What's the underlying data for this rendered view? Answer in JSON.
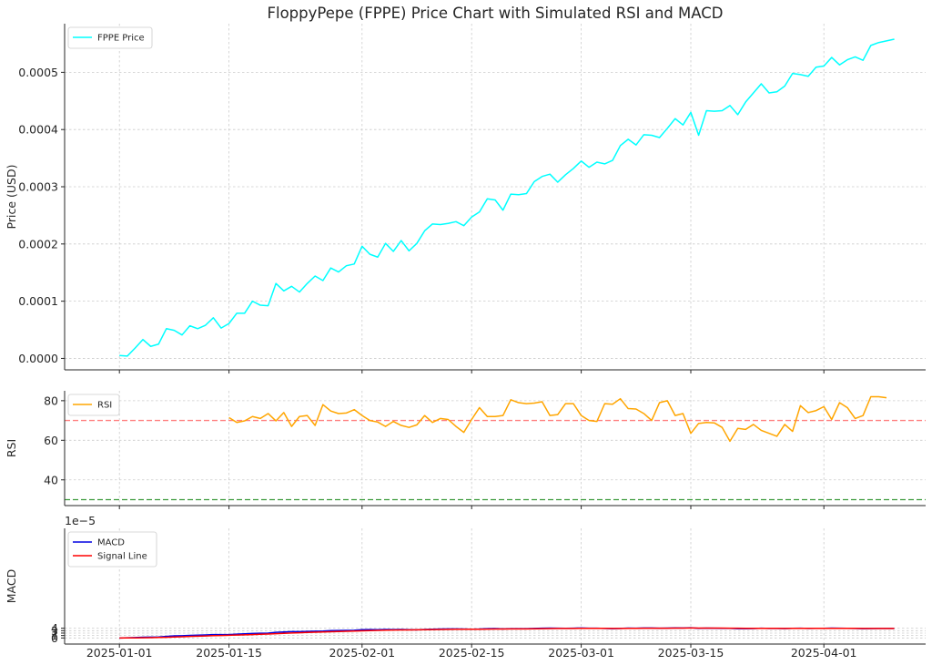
{
  "chart_data": {
    "title": "FloppyPepe (FPPE) Price Chart with Simulated RSI and MACD",
    "x_tick_labels": [
      "2025-01-01",
      "2025-01-15",
      "2025-02-01",
      "2025-02-15",
      "2025-03-01",
      "2025-03-15",
      "2025-04-01"
    ],
    "x_tick_dates": [
      "2025-01-01",
      "2025-01-15",
      "2025-02-01",
      "2025-02-15",
      "2025-03-01",
      "2025-03-15",
      "2025-04-01"
    ],
    "x_start_date": "2025-01-01",
    "x_range": [
      "2024-12-25",
      "2025-04-14"
    ],
    "grid": true,
    "panels": [
      {
        "type": "line",
        "ylabel": "Price (USD)",
        "ylim": [
          -2e-05,
          0.000585
        ],
        "yticks": [
          0.0,
          0.0001,
          0.0002,
          0.0003,
          0.0004,
          0.0005
        ],
        "ytick_labels": [
          "0.0000",
          "0.0001",
          "0.0002",
          "0.0003",
          "0.0004",
          "0.0005"
        ],
        "legend": "upper left",
        "hlines": [],
        "series": [
          {
            "name": "FPPE Price",
            "color": "#00ffff",
            "start_index": 0,
            "values": [
              5e-06,
              4e-06,
              1.8e-05,
              3.3e-05,
              2.1e-05,
              2.5e-05,
              5.2e-05,
              4.9e-05,
              4.1e-05,
              5.7e-05,
              5.2e-05,
              5.8e-05,
              7.1e-05,
              5.3e-05,
              6.1e-05,
              7.9e-05,
              7.9e-05,
              0.0001,
              9.3e-05,
              9.2e-05,
              0.000131,
              0.000118,
              0.000126,
              0.000116,
              0.000131,
              0.000144,
              0.000136,
              0.000158,
              0.000151,
              0.000162,
              0.000165,
              0.000196,
              0.000182,
              0.000177,
              0.000201,
              0.000187,
              0.000206,
              0.000188,
              0.000201,
              0.000223,
              0.000235,
              0.000234,
              0.000236,
              0.000239,
              0.000232,
              0.000247,
              0.000256,
              0.000279,
              0.000277,
              0.000259,
              0.000287,
              0.000286,
              0.000288,
              0.000309,
              0.000318,
              0.000322,
              0.000308,
              0.000321,
              0.000332,
              0.000345,
              0.000334,
              0.000343,
              0.00034,
              0.000346,
              0.000372,
              0.000383,
              0.000373,
              0.000391,
              0.00039,
              0.000386,
              0.000402,
              0.000419,
              0.000408,
              0.00043,
              0.00039,
              0.000433,
              0.000432,
              0.000433,
              0.000442,
              0.000426,
              0.000448,
              0.000464,
              0.00048,
              0.000464,
              0.000466,
              0.000476,
              0.000498,
              0.000496,
              0.000493,
              0.000509,
              0.000511,
              0.000526,
              0.000513,
              0.000522,
              0.000527,
              0.000521,
              0.000547,
              0.000552,
              0.000555,
              0.000558
            ]
          }
        ]
      },
      {
        "type": "line",
        "ylabel": "RSI",
        "ylim": [
          27,
          85
        ],
        "yticks": [
          40,
          60,
          80
        ],
        "ytick_labels": [
          "40",
          "60",
          "80"
        ],
        "legend": "upper left",
        "hlines": [
          {
            "y": 70,
            "color": "#ff7f7f",
            "style": "dashed"
          },
          {
            "y": 30,
            "color": "#3c9a3c",
            "style": "dashed"
          }
        ],
        "series": [
          {
            "name": "RSI",
            "color": "#ffa500",
            "start_index": 14,
            "values": [
              71.5,
              69.0,
              69.8,
              72.0,
              71.0,
              73.5,
              69.8,
              74.0,
              67.0,
              72.0,
              72.5,
              67.5,
              78.0,
              74.8,
              73.5,
              73.8,
              75.5,
              72.5,
              70.0,
              69.2,
              67.0,
              69.5,
              67.5,
              66.5,
              67.8,
              72.5,
              69.0,
              71.0,
              70.5,
              67.0,
              64.0,
              70.5,
              76.5,
              72.0,
              72.0,
              72.5,
              80.5,
              79.0,
              78.5,
              78.8,
              79.5,
              72.5,
              73.0,
              78.5,
              78.5,
              72.5,
              70.0,
              69.5,
              78.5,
              78.2,
              81.0,
              76.0,
              75.8,
              73.5,
              70.0,
              79.0,
              80.0,
              72.5,
              73.5,
              63.5,
              68.5,
              69.0,
              68.8,
              66.5,
              59.5,
              66.0,
              65.5,
              68.0,
              65.0,
              63.5,
              62.0,
              68.0,
              64.5,
              77.5,
              74.0,
              75.0,
              77.0,
              70.5,
              79.0,
              76.5,
              71.0,
              72.5,
              82.0,
              82.0,
              81.5
            ]
          }
        ]
      },
      {
        "type": "line",
        "ylabel": "MACD",
        "ylim": [
          -2.5,
          45
        ],
        "yticks": [
          0,
          1,
          2,
          3,
          4
        ],
        "ytick_labels": [
          "0",
          "1",
          "2",
          "3",
          "4"
        ],
        "offset_text": "1e−5",
        "legend": "upper left",
        "hlines": [],
        "series": [
          {
            "name": "MACD",
            "color": "#0000e0",
            "start_index": 0,
            "values": [
              0.0,
              0.05,
              0.15,
              0.3,
              0.35,
              0.4,
              0.65,
              0.85,
              0.92,
              1.05,
              1.15,
              1.25,
              1.4,
              1.38,
              1.4,
              1.55,
              1.7,
              1.85,
              1.95,
              2.0,
              2.3,
              2.45,
              2.6,
              2.6,
              2.7,
              2.8,
              2.82,
              3.0,
              3.05,
              3.1,
              3.15,
              3.4,
              3.45,
              3.4,
              3.5,
              3.45,
              3.5,
              3.4,
              3.35,
              3.5,
              3.6,
              3.65,
              3.7,
              3.7,
              3.65,
              3.6,
              3.65,
              3.8,
              3.85,
              3.7,
              3.8,
              3.82,
              3.8,
              3.9,
              4.0,
              4.05,
              3.98,
              3.95,
              4.0,
              4.1,
              4.0,
              4.0,
              3.9,
              3.8,
              3.9,
              4.05,
              4.0,
              4.1,
              4.1,
              4.0,
              4.05,
              4.15,
              4.1,
              4.2,
              3.95,
              4.05,
              4.02,
              3.95,
              3.95,
              3.8,
              3.82,
              3.85,
              4.0,
              3.9,
              3.9,
              3.88,
              3.95,
              3.98,
              3.9,
              3.95,
              3.95,
              4.05,
              3.98,
              3.95,
              3.9,
              3.8,
              3.85,
              3.9,
              3.9,
              3.92
            ]
          },
          {
            "name": "Signal Line",
            "color": "#ff0000",
            "start_index": 0,
            "values": [
              0.0,
              0.01,
              0.04,
              0.09,
              0.14,
              0.19,
              0.28,
              0.39,
              0.5,
              0.61,
              0.72,
              0.82,
              0.94,
              1.02,
              1.1,
              1.19,
              1.29,
              1.4,
              1.51,
              1.61,
              1.75,
              1.89,
              2.03,
              2.14,
              2.25,
              2.36,
              2.45,
              2.56,
              2.66,
              2.75,
              2.83,
              2.94,
              3.04,
              3.11,
              3.19,
              3.24,
              3.29,
              3.32,
              3.33,
              3.37,
              3.42,
              3.47,
              3.52,
              3.56,
              3.58,
              3.58,
              3.6,
              3.64,
              3.68,
              3.69,
              3.71,
              3.73,
              3.74,
              3.77,
              3.82,
              3.86,
              3.89,
              3.9,
              3.92,
              3.95,
              3.96,
              3.97,
              3.95,
              3.92,
              3.92,
              3.95,
              3.96,
              3.99,
              4.01,
              4.01,
              4.02,
              4.05,
              4.06,
              4.09,
              4.06,
              4.06,
              4.05,
              4.03,
              4.02,
              3.98,
              3.95,
              3.93,
              3.94,
              3.94,
              3.93,
              3.92,
              3.93,
              3.94,
              3.93,
              3.94,
              3.94,
              3.96,
              3.96,
              3.96,
              3.95,
              3.92,
              3.91,
              3.91,
              3.91,
              3.91
            ]
          }
        ]
      }
    ]
  }
}
